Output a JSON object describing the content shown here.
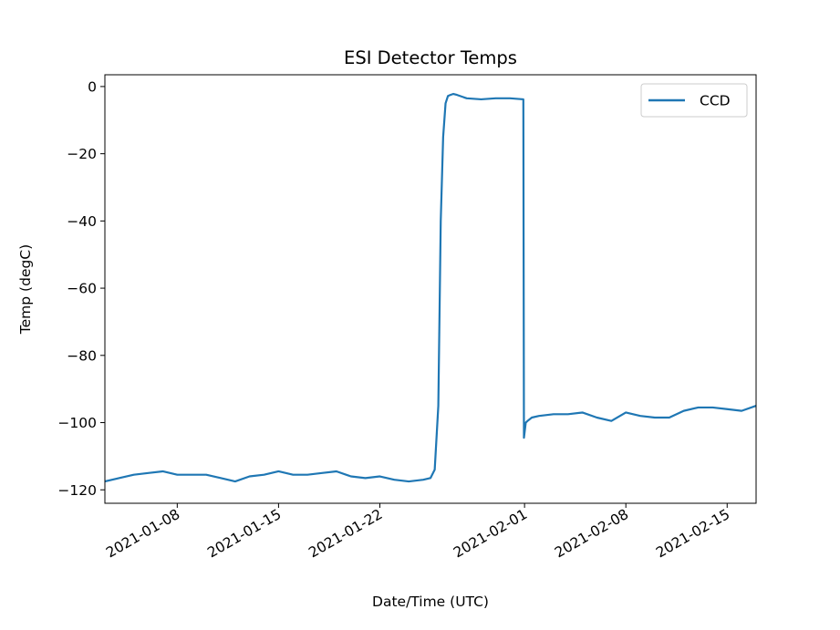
{
  "chart_data": {
    "type": "line",
    "title": "ESI Detector Temps",
    "xlabel": "Date/Time (UTC)",
    "ylabel": "Temp (degC)",
    "x_is_date": true,
    "xlim": [
      "2021-01-03",
      "2021-02-17"
    ],
    "ylim": [
      -124,
      3.5
    ],
    "yticks": [
      0,
      -20,
      -40,
      -60,
      -80,
      -100,
      -120
    ],
    "xticks": [
      "2021-01-08",
      "2021-01-15",
      "2021-01-22",
      "2021-02-01",
      "2021-02-08",
      "2021-02-15"
    ],
    "grid": false,
    "legend_position": "top-right",
    "series": [
      {
        "name": "CCD",
        "color": "#1f77b4",
        "x": [
          "2021-01-03T00:00",
          "2021-01-04T00:00",
          "2021-01-05T00:00",
          "2021-01-06T00:00",
          "2021-01-07T00:00",
          "2021-01-08T00:00",
          "2021-01-09T00:00",
          "2021-01-10T00:00",
          "2021-01-11T00:00",
          "2021-01-12T00:00",
          "2021-01-13T00:00",
          "2021-01-14T00:00",
          "2021-01-15T00:00",
          "2021-01-16T00:00",
          "2021-01-17T00:00",
          "2021-01-18T00:00",
          "2021-01-19T00:00",
          "2021-01-20T00:00",
          "2021-01-21T00:00",
          "2021-01-22T00:00",
          "2021-01-23T00:00",
          "2021-01-24T00:00",
          "2021-01-25T00:00",
          "2021-01-25T12:00",
          "2021-01-25T19:00",
          "2021-01-26T01:00",
          "2021-01-26T05:00",
          "2021-01-26T09:00",
          "2021-01-26T13:00",
          "2021-01-26T17:00",
          "2021-01-26T21:00",
          "2021-01-27T02:00",
          "2021-01-27T08:00",
          "2021-01-28T00:00",
          "2021-01-29T00:00",
          "2021-01-30T00:00",
          "2021-01-31T00:00",
          "2021-01-31T22:00",
          "2021-01-31T23:00",
          "2021-02-01T02:00",
          "2021-02-01T05:00",
          "2021-02-01T12:00",
          "2021-02-02T00:00",
          "2021-02-03T00:00",
          "2021-02-04T00:00",
          "2021-02-05T00:00",
          "2021-02-06T00:00",
          "2021-02-07T00:00",
          "2021-02-08T00:00",
          "2021-02-09T00:00",
          "2021-02-10T00:00",
          "2021-02-11T00:00",
          "2021-02-12T00:00",
          "2021-02-13T00:00",
          "2021-02-14T00:00",
          "2021-02-15T00:00",
          "2021-02-16T00:00",
          "2021-02-17T00:00"
        ],
        "y": [
          -117.5,
          -116.5,
          -115.5,
          -115,
          -114.5,
          -115.5,
          -115.5,
          -115.5,
          -116.5,
          -117.5,
          -116,
          -115.5,
          -114.5,
          -115.5,
          -115.5,
          -115,
          -114.5,
          -116,
          -116.5,
          -116,
          -117,
          -117.5,
          -117,
          -116.5,
          -114,
          -95,
          -40,
          -15,
          -5,
          -2.8,
          -2.5,
          -2.2,
          -2.5,
          -3.5,
          -3.8,
          -3.5,
          -3.5,
          -3.8,
          -104.5,
          -100,
          -99.5,
          -98.5,
          -98,
          -97.5,
          -97.5,
          -97,
          -98.5,
          -99.5,
          -97,
          -98,
          -98.5,
          -98.5,
          -96.5,
          -95.5,
          -95.5,
          -96,
          -96.5,
          -95
        ]
      }
    ]
  }
}
